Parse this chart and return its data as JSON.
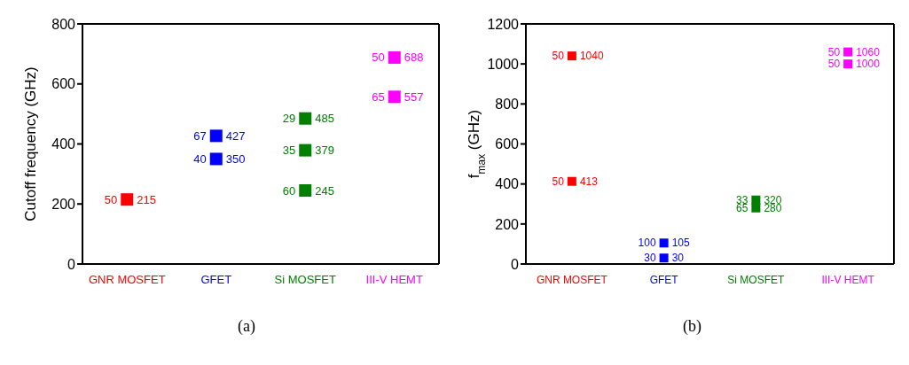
{
  "chart_data": [
    {
      "type": "scatter",
      "ylabel": "Cutoff frequency (GHz)",
      "categories": [
        "GNR MOSFET",
        "GFET",
        "Si MOSFET",
        "III-V HEMT"
      ],
      "ylim": [
        0,
        800
      ],
      "yticks": [
        0,
        200,
        400,
        600,
        800
      ],
      "marker": "square",
      "data_labels": true,
      "series": [
        {
          "values": [
            215,
            427,
            485,
            688
          ],
          "colors": [
            "#ff0000",
            "#0000ff",
            "#008000",
            "#ff00ff"
          ]
        },
        {
          "values": [
            null,
            350,
            379,
            557
          ],
          "colors": [
            "#ff0000",
            "#0000ff",
            "#008000",
            "#ff00ff"
          ]
        },
        {
          "values": [
            null,
            null,
            245,
            null
          ],
          "colors": [
            "#ff0000",
            "#0000ff",
            "#008000",
            "#ff00ff"
          ]
        }
      ],
      "annotations": [
        "(a)",
        {
          "text": "50",
          "x": "GNR MOSFET",
          "y": 215
        },
        {
          "text": "67",
          "x": "GFET",
          "y": 427
        },
        {
          "text": "40",
          "x": "GFET",
          "y": 350
        },
        {
          "text": "29",
          "x": "Si MOSFET",
          "y": 485
        },
        {
          "text": "35",
          "x": "Si MOSFET",
          "y": 379
        },
        {
          "text": "60",
          "x": "Si MOSFET",
          "y": 245
        },
        {
          "text": "50",
          "x": "III-V HEMT",
          "y": 688
        },
        {
          "text": "65",
          "x": "III-V HEMT",
          "y": 557
        }
      ]
    },
    {
      "type": "scatter",
      "ylabel": "f$_{max}$ (GHz)",
      "categories": [
        "GNR MOSFET",
        "GFET",
        "Si MOSFET",
        "III-V HEMT"
      ],
      "ylim": [
        0,
        1200
      ],
      "yticks": [
        0,
        200,
        400,
        600,
        800,
        1000,
        1200
      ],
      "marker": "square",
      "data_labels": true,
      "series": [
        {
          "values": [
            1040,
            105,
            320,
            1060
          ],
          "colors": [
            "#ff0000",
            "#0000ff",
            "#008000",
            "#ff00ff"
          ]
        },
        {
          "values": [
            413,
            30,
            280,
            1000
          ],
          "colors": [
            "#ff0000",
            "#0000ff",
            "#008000",
            "#ff00ff"
          ]
        }
      ],
      "annotations": [
        "(b)",
        {
          "text": "50",
          "x": "GNR MOSFET",
          "y": 1040
        },
        {
          "text": "50",
          "x": "GNR MOSFET",
          "y": 413
        },
        {
          "text": "100",
          "x": "GFET",
          "y": 105
        },
        {
          "text": "30",
          "x": "GFET",
          "y": 30
        },
        {
          "text": "33",
          "x": "Si MOSFET",
          "y": 320
        },
        {
          "text": "65",
          "x": "Si MOSFET",
          "y": 280
        },
        {
          "text": "50",
          "x": "III-V HEMT",
          "y": 1060
        },
        {
          "text": "50",
          "x": "III-V HEMT",
          "y": 1000
        }
      ]
    }
  ]
}
